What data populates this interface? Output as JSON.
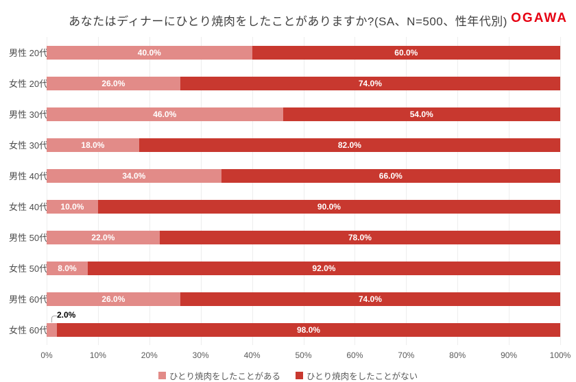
{
  "header": {
    "title": "あなたはディナーにひとり焼肉をしたことがありますか?(SA、N=500、性年代別)",
    "logo_text": "OGAWA"
  },
  "chart_data": {
    "type": "bar",
    "orientation": "horizontal",
    "stacked": true,
    "unit": "%",
    "categories": [
      "男性 20代",
      "女性 20代",
      "男性 30代",
      "女性 30代",
      "男性 40代",
      "女性 40代",
      "男性 50代",
      "女性 50代",
      "男性 60代",
      "女性 60代"
    ],
    "series": [
      {
        "name": "ひとり焼肉をしたことがある",
        "color": "#e28b88",
        "values": [
          40.0,
          26.0,
          46.0,
          18.0,
          34.0,
          10.0,
          22.0,
          8.0,
          26.0,
          2.0
        ]
      },
      {
        "name": "ひとり焼肉をしたことがない",
        "color": "#c8382f",
        "values": [
          60.0,
          74.0,
          54.0,
          82.0,
          66.0,
          90.0,
          78.0,
          92.0,
          74.0,
          98.0
        ]
      }
    ],
    "x_ticks": [
      "0%",
      "10%",
      "20%",
      "30%",
      "40%",
      "50%",
      "60%",
      "70%",
      "80%",
      "90%",
      "100%"
    ],
    "xlim": [
      0,
      100
    ],
    "grid": "vertical",
    "legend_position": "bottom",
    "value_label_style": "white-bold-inside",
    "callout_value_label": "2.0%"
  },
  "colors": {
    "logo": "#e60012",
    "title_text": "#404040",
    "axis_text": "#595959",
    "gridline": "#ededed",
    "value_label": "#ffffff",
    "callout_text": "#000000"
  }
}
